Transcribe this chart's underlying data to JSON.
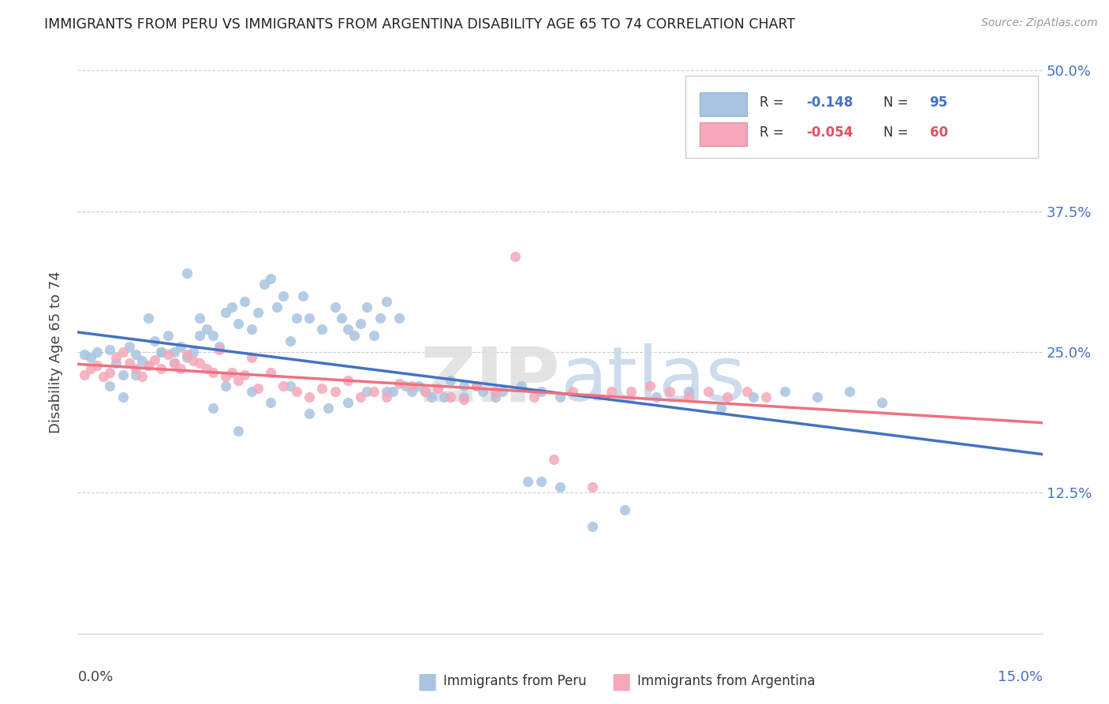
{
  "title": "IMMIGRANTS FROM PERU VS IMMIGRANTS FROM ARGENTINA DISABILITY AGE 65 TO 74 CORRELATION CHART",
  "source": "Source: ZipAtlas.com",
  "ylabel": "Disability Age 65 to 74",
  "xlim": [
    0.0,
    0.15
  ],
  "ylim": [
    0.0,
    0.5
  ],
  "peru_color": "#a8c4e0",
  "argentina_color": "#f4a8b8",
  "peru_line_color": "#4472c4",
  "argentina_line_color": "#f07080",
  "legend_peru_R": "-0.148",
  "legend_peru_N": "95",
  "legend_argentina_R": "-0.054",
  "legend_argentina_N": "60",
  "peru_scatter_x": [
    0.001,
    0.002,
    0.003,
    0.005,
    0.006,
    0.007,
    0.008,
    0.009,
    0.01,
    0.011,
    0.012,
    0.013,
    0.014,
    0.015,
    0.016,
    0.017,
    0.018,
    0.019,
    0.02,
    0.021,
    0.022,
    0.023,
    0.024,
    0.025,
    0.026,
    0.027,
    0.028,
    0.029,
    0.03,
    0.031,
    0.032,
    0.033,
    0.034,
    0.035,
    0.036,
    0.038,
    0.04,
    0.041,
    0.042,
    0.043,
    0.044,
    0.045,
    0.046,
    0.047,
    0.048,
    0.049,
    0.05,
    0.052,
    0.053,
    0.055,
    0.058,
    0.06,
    0.062,
    0.065,
    0.07,
    0.072,
    0.075,
    0.08,
    0.085,
    0.09,
    0.095,
    0.1,
    0.105,
    0.11,
    0.115,
    0.12,
    0.125,
    0.005,
    0.007,
    0.009,
    0.011,
    0.013,
    0.015,
    0.017,
    0.019,
    0.021,
    0.023,
    0.025,
    0.027,
    0.03,
    0.033,
    0.036,
    0.039,
    0.042,
    0.045,
    0.048,
    0.051,
    0.054,
    0.057,
    0.06,
    0.063,
    0.066,
    0.069,
    0.072,
    0.075
  ],
  "peru_scatter_y": [
    0.248,
    0.245,
    0.25,
    0.252,
    0.24,
    0.23,
    0.255,
    0.248,
    0.242,
    0.238,
    0.26,
    0.25,
    0.265,
    0.24,
    0.255,
    0.245,
    0.25,
    0.28,
    0.27,
    0.265,
    0.255,
    0.285,
    0.29,
    0.275,
    0.295,
    0.27,
    0.285,
    0.31,
    0.315,
    0.29,
    0.3,
    0.26,
    0.28,
    0.3,
    0.28,
    0.27,
    0.29,
    0.28,
    0.27,
    0.265,
    0.275,
    0.29,
    0.265,
    0.28,
    0.295,
    0.215,
    0.28,
    0.215,
    0.22,
    0.21,
    0.225,
    0.21,
    0.22,
    0.21,
    0.135,
    0.135,
    0.13,
    0.095,
    0.11,
    0.21,
    0.215,
    0.2,
    0.21,
    0.215,
    0.21,
    0.215,
    0.205,
    0.22,
    0.21,
    0.23,
    0.28,
    0.25,
    0.25,
    0.32,
    0.265,
    0.2,
    0.22,
    0.18,
    0.215,
    0.205,
    0.22,
    0.195,
    0.2,
    0.205,
    0.215,
    0.215,
    0.22,
    0.215,
    0.21,
    0.22,
    0.215,
    0.215,
    0.22,
    0.215,
    0.21
  ],
  "argentina_scatter_x": [
    0.001,
    0.002,
    0.003,
    0.004,
    0.005,
    0.006,
    0.007,
    0.008,
    0.009,
    0.01,
    0.011,
    0.012,
    0.013,
    0.014,
    0.015,
    0.016,
    0.017,
    0.018,
    0.019,
    0.02,
    0.021,
    0.022,
    0.023,
    0.024,
    0.025,
    0.026,
    0.027,
    0.028,
    0.03,
    0.032,
    0.034,
    0.036,
    0.038,
    0.04,
    0.042,
    0.044,
    0.046,
    0.048,
    0.05,
    0.052,
    0.054,
    0.056,
    0.058,
    0.06,
    0.062,
    0.065,
    0.068,
    0.071,
    0.074,
    0.077,
    0.08,
    0.083,
    0.086,
    0.089,
    0.092,
    0.095,
    0.098,
    0.101,
    0.104,
    0.107
  ],
  "argentina_scatter_y": [
    0.23,
    0.235,
    0.238,
    0.228,
    0.232,
    0.245,
    0.25,
    0.24,
    0.235,
    0.228,
    0.238,
    0.243,
    0.235,
    0.248,
    0.24,
    0.235,
    0.248,
    0.242,
    0.24,
    0.235,
    0.232,
    0.252,
    0.228,
    0.232,
    0.225,
    0.23,
    0.245,
    0.218,
    0.232,
    0.22,
    0.215,
    0.21,
    0.218,
    0.215,
    0.225,
    0.21,
    0.215,
    0.21,
    0.222,
    0.22,
    0.215,
    0.218,
    0.21,
    0.208,
    0.22,
    0.215,
    0.335,
    0.21,
    0.155,
    0.215,
    0.13,
    0.215,
    0.215,
    0.22,
    0.215,
    0.21,
    0.215,
    0.21,
    0.215,
    0.21
  ]
}
